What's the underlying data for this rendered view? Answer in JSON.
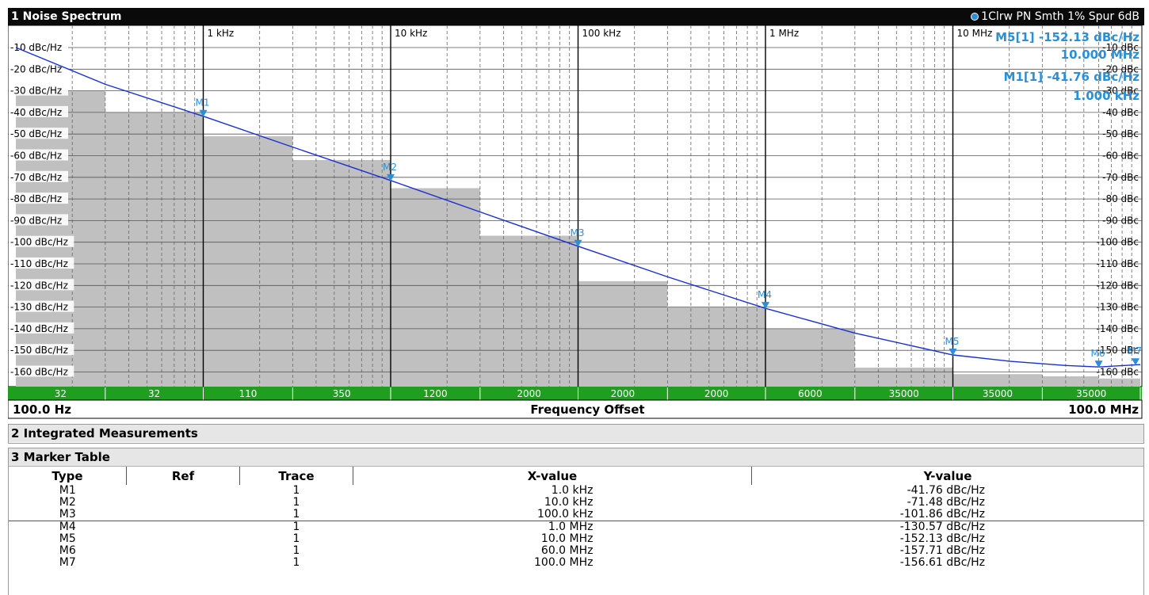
{
  "window": {
    "panel1_title": "1 Noise Spectrum",
    "panel1_status": "1Clrw PN Smth 1% Spur 6dB",
    "panel2_title": "2 Integrated Measurements",
    "panel3_title": "3 Marker Table",
    "x_start": "100.0 Hz",
    "x_stop": "100.0 MHz",
    "x_center_label": "Frequency Offset"
  },
  "marker_readouts": [
    {
      "name": "M5[1]",
      "value": "-152.13 dBc/Hz",
      "freq": "10.000 MHz"
    },
    {
      "name": "M1[1]",
      "value": "-41.76 dBc/Hz",
      "freq": "1.000 kHz"
    }
  ],
  "bottom_bar_counts": [
    "32",
    "32",
    "110",
    "350",
    "1200",
    "2000",
    "2000",
    "2000",
    "6000",
    "35000",
    "35000",
    "35000"
  ],
  "chart_data": {
    "type": "line",
    "x_scale": "log",
    "xlim": [
      100,
      100000000
    ],
    "ylim": [
      -170,
      -5
    ],
    "y_ticks": [
      -10,
      -20,
      -30,
      -40,
      -50,
      -60,
      -70,
      -80,
      -90,
      -100,
      -110,
      -120,
      -130,
      -140,
      -150,
      -160
    ],
    "y_tick_labels_left": [
      "-10 dBc/Hz",
      "-20 dBc/Hz",
      "-30 dBc/Hz",
      "-40 dBc/Hz",
      "-50 dBc/Hz",
      "-60 dBc/Hz",
      "-70 dBc/Hz",
      "-80 dBc/Hz",
      "-90 dBc/Hz",
      "-100 dBc/Hz",
      "-110 dBc/Hz",
      "-120 dBc/Hz",
      "-130 dBc/Hz",
      "-140 dBc/Hz",
      "-150 dBc/Hz",
      "-160 dBc/Hz"
    ],
    "y_tick_labels_right": [
      "-10 dBc",
      "-20 dBc",
      "-30 dBc",
      "-40 dBc",
      "-50 dBc",
      "-60 dBc",
      "-70 dBc",
      "-80 dBc",
      "-90 dBc",
      "-100 dBc",
      "-110 dBc",
      "-120 dBc",
      "-130 dBc",
      "-140 dBc",
      "-150 dBc",
      "-160 dBc"
    ],
    "x_ticks": [
      1000,
      10000,
      100000,
      1000000,
      10000000
    ],
    "x_tick_labels": [
      "1 kHz",
      "10 kHz",
      "100 kHz",
      "1 MHz",
      "10 MHz"
    ],
    "grid": true,
    "series": [
      {
        "color": "#1a2fd0",
        "x": [
          100,
          300,
          1000,
          3000,
          10000,
          30000,
          100000,
          300000,
          1000000,
          3000000,
          10000000,
          20000000,
          40000000,
          60000000,
          100000000
        ],
        "y": [
          -10,
          -27,
          -41.76,
          -56,
          -71.48,
          -86,
          -101.86,
          -116,
          -130.57,
          -142,
          -152.13,
          -155,
          -157,
          -157.71,
          -156.61
        ]
      },
      {
        "color": "#c0c0c0",
        "fill": true,
        "x": [
          100,
          300,
          1000,
          3000,
          10000,
          30000,
          100000,
          300000,
          1000000,
          3000000,
          10000000,
          30000000,
          60000000,
          100000000
        ],
        "y": [
          -30,
          -40,
          -51,
          -62,
          -75,
          -97,
          -118,
          -130,
          -140,
          -158,
          -161,
          -162,
          -163,
          -168
        ]
      }
    ],
    "markers": [
      {
        "name": "M1",
        "x": 1000,
        "y": -41.76,
        "color": "#2a8fd6"
      },
      {
        "name": "M2",
        "x": 10000,
        "y": -71.48,
        "color": "#2a8fd6"
      },
      {
        "name": "M3",
        "x": 100000,
        "y": -101.86,
        "color": "#2a8fd6"
      },
      {
        "name": "M4",
        "x": 1000000,
        "y": -130.57,
        "color": "#2a8fd6"
      },
      {
        "name": "M5",
        "x": 10000000,
        "y": -152.13,
        "color": "#2a8fd6"
      },
      {
        "name": "M6",
        "x": 60000000,
        "y": -157.71,
        "color": "#2a8fd6"
      },
      {
        "name": "M7",
        "x": 100000000,
        "y": -156.61,
        "color": "#2a8fd6"
      }
    ]
  },
  "marker_table": {
    "headers": [
      "Type",
      "Ref",
      "Trace",
      "X-value",
      "Y-value"
    ],
    "rows": [
      [
        "M1",
        "",
        "1",
        "1.0 kHz",
        "-41.76 dBc/Hz"
      ],
      [
        "M2",
        "",
        "1",
        "10.0 kHz",
        "-71.48 dBc/Hz"
      ],
      [
        "M3",
        "",
        "1",
        "100.0 kHz",
        "-101.86 dBc/Hz"
      ],
      [
        "M4",
        "",
        "1",
        "1.0 MHz",
        "-130.57 dBc/Hz"
      ],
      [
        "M5",
        "",
        "1",
        "10.0 MHz",
        "-152.13 dBc/Hz"
      ],
      [
        "M6",
        "",
        "1",
        "60.0 MHz",
        "-157.71 dBc/Hz"
      ],
      [
        "M7",
        "",
        "1",
        "100.0 MHz",
        "-156.61 dBc/Hz"
      ]
    ]
  }
}
